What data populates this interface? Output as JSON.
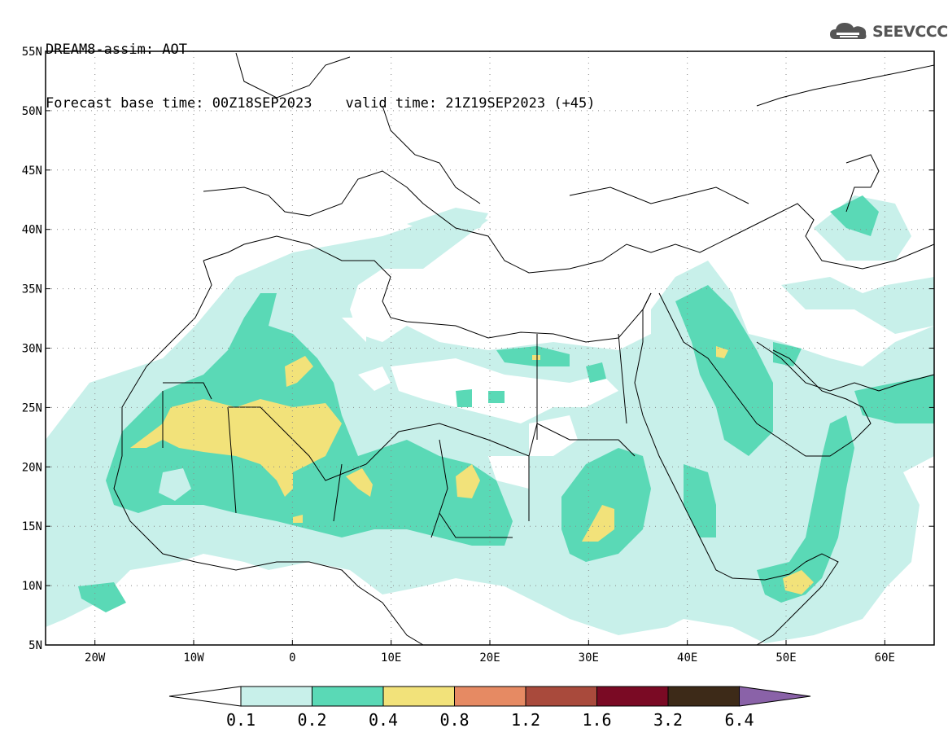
{
  "title": {
    "line1": "DREAM8-assim: AOT",
    "base_time": "Forecast base time: 00Z18SEP2023",
    "valid_time": "valid time: 21Z19SEP2023 (+45)"
  },
  "brand": {
    "name": "SEEVCCC",
    "icon": "cloud-logo-icon"
  },
  "map": {
    "lat_labels": [
      "55N",
      "50N",
      "45N",
      "40N",
      "35N",
      "30N",
      "25N",
      "20N",
      "15N",
      "10N",
      "5N"
    ],
    "lon_labels": [
      "20W",
      "10W",
      "0",
      "10E",
      "20E",
      "30E",
      "40E",
      "50E",
      "60E"
    ],
    "lat_range": [
      5,
      55
    ],
    "lon_range": [
      -25,
      65
    ],
    "gridlines": "dotted"
  },
  "colorbar": {
    "labels": [
      "0.1",
      "0.2",
      "0.4",
      "0.8",
      "1.2",
      "1.6",
      "3.2",
      "6.4"
    ],
    "colors": [
      "#ffffff",
      "#c8f0ea",
      "#5ad9b6",
      "#f2e27a",
      "#e68a63",
      "#a94a3c",
      "#7a0a24",
      "#3d2a18",
      "#8a62a8"
    ]
  }
}
